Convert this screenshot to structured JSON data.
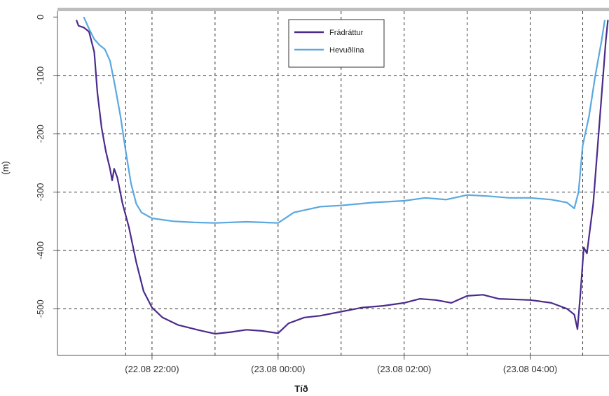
{
  "chart_data": {
    "type": "line",
    "title": "",
    "xlabel": "Tíð",
    "ylabel": "(m)",
    "ylim": [
      -580,
      10
    ],
    "yticks": [
      0,
      -100,
      -200,
      -300,
      -400,
      -500
    ],
    "yticks_text": [
      "0",
      "-100",
      "-200",
      "-300",
      "-400",
      "-500"
    ],
    "xlim": [
      "2012-08-22T20:30",
      "2012-08-23T05:15"
    ],
    "xticks": [
      {
        "t": "2012-08-22T22:00",
        "label": "(22.08 22:00)"
      },
      {
        "t": "2012-08-23T00:00",
        "label": "(23.08 00:00)"
      },
      {
        "t": "2012-08-23T02:00",
        "label": "(23.08 02:00)"
      },
      {
        "t": "2012-08-23T04:00",
        "label": "(23.08 04:00)"
      }
    ],
    "vertical_dashed_lines": [
      "2012-08-22T21:35",
      "2012-08-22T22:00",
      "2012-08-22T23:00",
      "2012-08-23T00:00",
      "2012-08-23T01:00",
      "2012-08-23T02:00",
      "2012-08-23T03:00",
      "2012-08-23T04:00",
      "2012-08-23T04:50"
    ],
    "grid": true,
    "legend_position": "top-center",
    "series": [
      {
        "name": "Frádráttur",
        "color": "#4b2a8c",
        "points": [
          [
            "2012-08-22T20:48",
            -5
          ],
          [
            "2012-08-22T20:50",
            -15
          ],
          [
            "2012-08-22T20:55",
            -18
          ],
          [
            "2012-08-22T21:00",
            -25
          ],
          [
            "2012-08-22T21:05",
            -60
          ],
          [
            "2012-08-22T21:08",
            -130
          ],
          [
            "2012-08-22T21:12",
            -190
          ],
          [
            "2012-08-22T21:16",
            -230
          ],
          [
            "2012-08-22T21:20",
            -260
          ],
          [
            "2012-08-22T21:22",
            -280
          ],
          [
            "2012-08-22T21:24",
            -260
          ],
          [
            "2012-08-22T21:27",
            -275
          ],
          [
            "2012-08-22T21:32",
            -320
          ],
          [
            "2012-08-22T21:38",
            -360
          ],
          [
            "2012-08-22T21:45",
            -420
          ],
          [
            "2012-08-22T21:52",
            -470
          ],
          [
            "2012-08-22T22:00",
            -498
          ],
          [
            "2012-08-22T22:10",
            -515
          ],
          [
            "2012-08-22T22:25",
            -528
          ],
          [
            "2012-08-22T22:45",
            -537
          ],
          [
            "2012-08-22T23:00",
            -543
          ],
          [
            "2012-08-22T23:15",
            -540
          ],
          [
            "2012-08-22T23:30",
            -536
          ],
          [
            "2012-08-22T23:45",
            -538
          ],
          [
            "2012-08-23T00:00",
            -542
          ],
          [
            "2012-08-23T00:10",
            -525
          ],
          [
            "2012-08-23T00:25",
            -515
          ],
          [
            "2012-08-23T00:40",
            -512
          ],
          [
            "2012-08-23T01:00",
            -505
          ],
          [
            "2012-08-23T01:20",
            -498
          ],
          [
            "2012-08-23T01:40",
            -495
          ],
          [
            "2012-08-23T02:00",
            -490
          ],
          [
            "2012-08-23T02:15",
            -483
          ],
          [
            "2012-08-23T02:30",
            -485
          ],
          [
            "2012-08-23T02:45",
            -490
          ],
          [
            "2012-08-23T03:00",
            -478
          ],
          [
            "2012-08-23T03:15",
            -476
          ],
          [
            "2012-08-23T03:30",
            -483
          ],
          [
            "2012-08-23T04:00",
            -485
          ],
          [
            "2012-08-23T04:20",
            -490
          ],
          [
            "2012-08-23T04:35",
            -500
          ],
          [
            "2012-08-23T04:42",
            -510
          ],
          [
            "2012-08-23T04:45",
            -535
          ],
          [
            "2012-08-23T04:48",
            -470
          ],
          [
            "2012-08-23T04:51",
            -395
          ],
          [
            "2012-08-23T04:54",
            -405
          ],
          [
            "2012-08-23T05:00",
            -320
          ],
          [
            "2012-08-23T05:06",
            -180
          ],
          [
            "2012-08-23T05:12",
            -40
          ],
          [
            "2012-08-23T05:14",
            -5
          ]
        ]
      },
      {
        "name": "Hevuðlína",
        "color": "#5aa8e0",
        "points": [
          [
            "2012-08-22T20:55",
            0
          ],
          [
            "2012-08-22T21:00",
            -20
          ],
          [
            "2012-08-22T21:05",
            -38
          ],
          [
            "2012-08-22T21:10",
            -48
          ],
          [
            "2012-08-22T21:15",
            -55
          ],
          [
            "2012-08-22T21:20",
            -75
          ],
          [
            "2012-08-22T21:25",
            -120
          ],
          [
            "2012-08-22T21:30",
            -170
          ],
          [
            "2012-08-22T21:35",
            -230
          ],
          [
            "2012-08-22T21:40",
            -285
          ],
          [
            "2012-08-22T21:45",
            -320
          ],
          [
            "2012-08-22T21:50",
            -335
          ],
          [
            "2012-08-22T22:00",
            -345
          ],
          [
            "2012-08-22T22:20",
            -350
          ],
          [
            "2012-08-22T22:40",
            -352
          ],
          [
            "2012-08-22T23:00",
            -353
          ],
          [
            "2012-08-22T23:30",
            -351
          ],
          [
            "2012-08-23T00:00",
            -353
          ],
          [
            "2012-08-23T00:15",
            -335
          ],
          [
            "2012-08-23T00:40",
            -325
          ],
          [
            "2012-08-23T01:00",
            -323
          ],
          [
            "2012-08-23T01:30",
            -318
          ],
          [
            "2012-08-23T02:00",
            -315
          ],
          [
            "2012-08-23T02:20",
            -310
          ],
          [
            "2012-08-23T02:40",
            -313
          ],
          [
            "2012-08-23T03:00",
            -305
          ],
          [
            "2012-08-23T03:20",
            -307
          ],
          [
            "2012-08-23T03:40",
            -310
          ],
          [
            "2012-08-23T04:00",
            -310
          ],
          [
            "2012-08-23T04:20",
            -313
          ],
          [
            "2012-08-23T04:35",
            -318
          ],
          [
            "2012-08-23T04:42",
            -328
          ],
          [
            "2012-08-23T04:46",
            -300
          ],
          [
            "2012-08-23T04:50",
            -220
          ],
          [
            "2012-08-23T04:56",
            -170
          ],
          [
            "2012-08-23T05:02",
            -100
          ],
          [
            "2012-08-23T05:08",
            -40
          ],
          [
            "2012-08-23T05:11",
            -5
          ]
        ]
      }
    ]
  },
  "colors": {
    "frame_top": "#bdbdbd",
    "grid": "#333333",
    "axis": "#555555"
  }
}
